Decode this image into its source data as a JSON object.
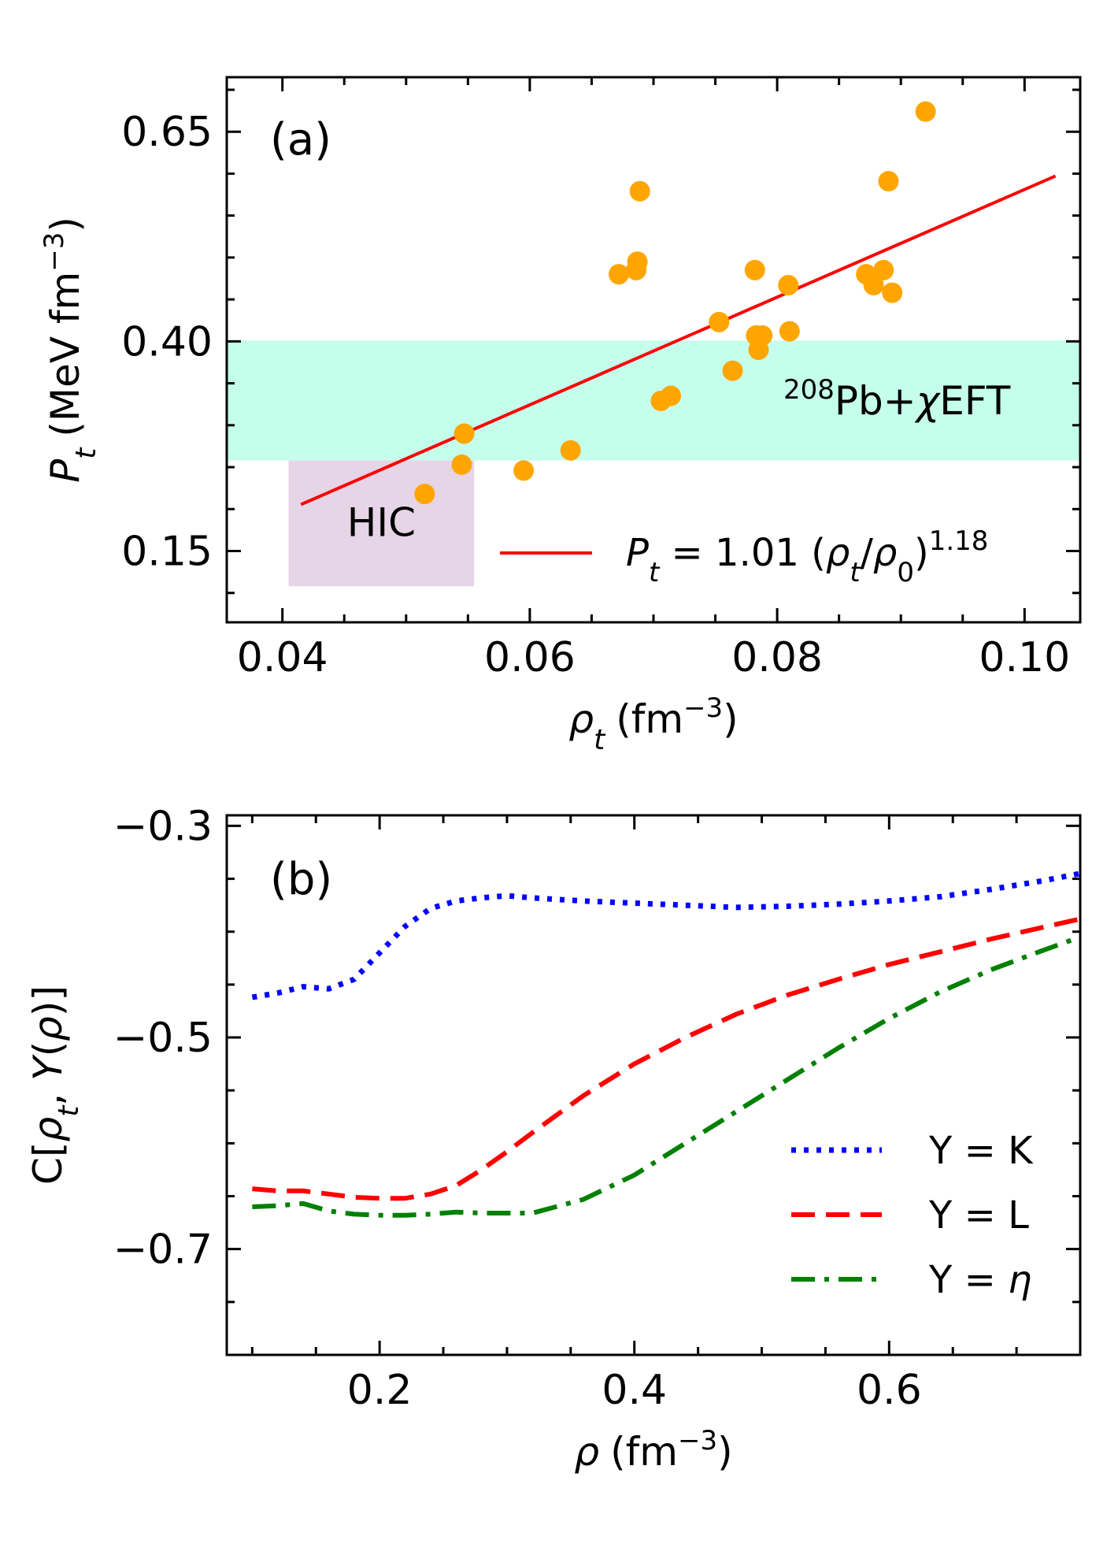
{
  "chart_data": [
    {
      "panel": "(a)",
      "type": "scatter",
      "xlabel": {
        "symbol": "ρ",
        "sub": "t",
        "unit": "(fm",
        "exp": "−3",
        "close": ")"
      },
      "ylabel": {
        "symbol": "P",
        "sub": "t",
        "unit": "(MeV fm",
        "exp": "−3",
        "close": ")"
      },
      "xlim": [
        0.0355,
        0.1045
      ],
      "ylim": [
        0.065,
        0.715
      ],
      "xticks": [
        0.04,
        0.06,
        0.08,
        0.1
      ],
      "xtick_labels": [
        "0.04",
        "0.06",
        "0.08",
        "0.10"
      ],
      "yticks": [
        0.15,
        0.4,
        0.65
      ],
      "ytick_labels": [
        "0.15",
        "0.40",
        "0.65"
      ],
      "x_minor_step": 0.005,
      "y_minor_step": 0.05,
      "points": {
        "color": "#ffa500",
        "data": [
          [
            0.0515,
            0.218
          ],
          [
            0.0545,
            0.253
          ],
          [
            0.0547,
            0.29
          ],
          [
            0.0595,
            0.246
          ],
          [
            0.0633,
            0.27
          ],
          [
            0.0672,
            0.48
          ],
          [
            0.0686,
            0.485
          ],
          [
            0.0687,
            0.495
          ],
          [
            0.0689,
            0.579
          ],
          [
            0.0706,
            0.329
          ],
          [
            0.0714,
            0.335
          ],
          [
            0.0753,
            0.423
          ],
          [
            0.0764,
            0.365
          ],
          [
            0.0782,
            0.485
          ],
          [
            0.0783,
            0.407
          ],
          [
            0.0785,
            0.39
          ],
          [
            0.0788,
            0.407
          ],
          [
            0.0809,
            0.467
          ],
          [
            0.081,
            0.412
          ],
          [
            0.0872,
            0.48
          ],
          [
            0.0878,
            0.467
          ],
          [
            0.0886,
            0.485
          ],
          [
            0.089,
            0.591
          ],
          [
            0.0893,
            0.458
          ],
          [
            0.092,
            0.674
          ]
        ]
      },
      "fit": {
        "color": "#ff0000",
        "x_range": [
          0.0415,
          0.1025
        ],
        "coef": 1.01,
        "exponent": 1.18,
        "rho0": 0.16,
        "legend": "P_t = 1.01 (ρ_t/ρ_0)^1.18",
        "legend_parts": {
          "lhs": "P",
          "lhs_sub": "t",
          "eq": " = 1.01 (",
          "num": "ρ",
          "num_sub": "t",
          "slash": "/",
          "den": "ρ",
          "den_sub": "0",
          "close": ")",
          "exp": "1.18"
        },
        "legend_loc": "lower-right"
      },
      "bands": [
        {
          "name": "Pb+χEFT",
          "label_sup": "208",
          "label_main": "Pb+",
          "label_chi": "χ",
          "label_tail": "EFT",
          "color": "#7fffd4",
          "opacity": 0.45,
          "x": [
            0.0355,
            0.1045
          ],
          "y": [
            0.258,
            0.401
          ]
        },
        {
          "name": "HIC",
          "label": "HIC",
          "color": "#d8bfd8",
          "opacity": 0.65,
          "x": [
            0.0405,
            0.0555
          ],
          "y": [
            0.108,
            0.258
          ]
        }
      ]
    },
    {
      "panel": "(b)",
      "type": "line",
      "xlabel": {
        "symbol": "ρ",
        "unit": "(fm",
        "exp": "−3",
        "close": ")"
      },
      "ylabel_parts": {
        "a": "C[",
        "b": "ρ",
        "b_sub": "t",
        "c": ", ",
        "d": "Y",
        "e": "(",
        "f": "ρ",
        "g": ")]"
      },
      "xlim": [
        0.08,
        0.75
      ],
      "ylim": [
        -0.8,
        -0.29
      ],
      "xticks": [
        0.2,
        0.4,
        0.6
      ],
      "xtick_labels": [
        "0.2",
        "0.4",
        "0.6"
      ],
      "yticks": [
        -0.3,
        -0.5,
        -0.7
      ],
      "ytick_labels": [
        "−0.3",
        "−0.5",
        "−0.7"
      ],
      "x_minor_step": 0.05,
      "y_minor_step": 0.05,
      "legend_loc": "lower-right",
      "series": [
        {
          "name": "Y = K",
          "legend_prefix": "Y = ",
          "legend_var": "K",
          "italic": false,
          "color": "#0000ff",
          "dash": "dotted",
          "x": [
            0.1,
            0.12,
            0.14,
            0.16,
            0.18,
            0.2,
            0.22,
            0.24,
            0.26,
            0.28,
            0.3,
            0.32,
            0.36,
            0.4,
            0.44,
            0.48,
            0.52,
            0.56,
            0.6,
            0.64,
            0.68,
            0.72,
            0.75
          ],
          "y": [
            -0.462,
            -0.458,
            -0.452,
            -0.454,
            -0.445,
            -0.42,
            -0.395,
            -0.378,
            -0.371,
            -0.368,
            -0.366,
            -0.368,
            -0.371,
            -0.373,
            -0.375,
            -0.377,
            -0.376,
            -0.374,
            -0.371,
            -0.367,
            -0.36,
            -0.352,
            -0.345
          ]
        },
        {
          "name": "Y = L",
          "legend_prefix": "Y = ",
          "legend_var": "L",
          "italic": false,
          "color": "#ff0000",
          "dash": "dashed",
          "x": [
            0.1,
            0.12,
            0.14,
            0.16,
            0.18,
            0.2,
            0.22,
            0.24,
            0.26,
            0.28,
            0.3,
            0.32,
            0.36,
            0.4,
            0.44,
            0.48,
            0.52,
            0.56,
            0.6,
            0.64,
            0.68,
            0.72,
            0.75
          ],
          "y": [
            -0.643,
            -0.645,
            -0.645,
            -0.648,
            -0.651,
            -0.652,
            -0.652,
            -0.648,
            -0.64,
            -0.625,
            -0.608,
            -0.59,
            -0.555,
            -0.525,
            -0.5,
            -0.478,
            -0.46,
            -0.445,
            -0.431,
            -0.419,
            -0.407,
            -0.396,
            -0.388
          ]
        },
        {
          "name": "Y = η",
          "legend_prefix": "Y = ",
          "legend_var": "η",
          "italic": true,
          "color": "#008000",
          "dash": "dashdot",
          "x": [
            0.1,
            0.12,
            0.14,
            0.16,
            0.18,
            0.2,
            0.22,
            0.24,
            0.26,
            0.28,
            0.3,
            0.32,
            0.36,
            0.4,
            0.44,
            0.48,
            0.52,
            0.56,
            0.6,
            0.64,
            0.68,
            0.72,
            0.75
          ],
          "y": [
            -0.66,
            -0.659,
            -0.657,
            -0.664,
            -0.667,
            -0.668,
            -0.668,
            -0.667,
            -0.665,
            -0.666,
            -0.666,
            -0.666,
            -0.653,
            -0.63,
            -0.6,
            -0.57,
            -0.54,
            -0.51,
            -0.482,
            -0.457,
            -0.436,
            -0.418,
            -0.405
          ]
        }
      ]
    }
  ]
}
